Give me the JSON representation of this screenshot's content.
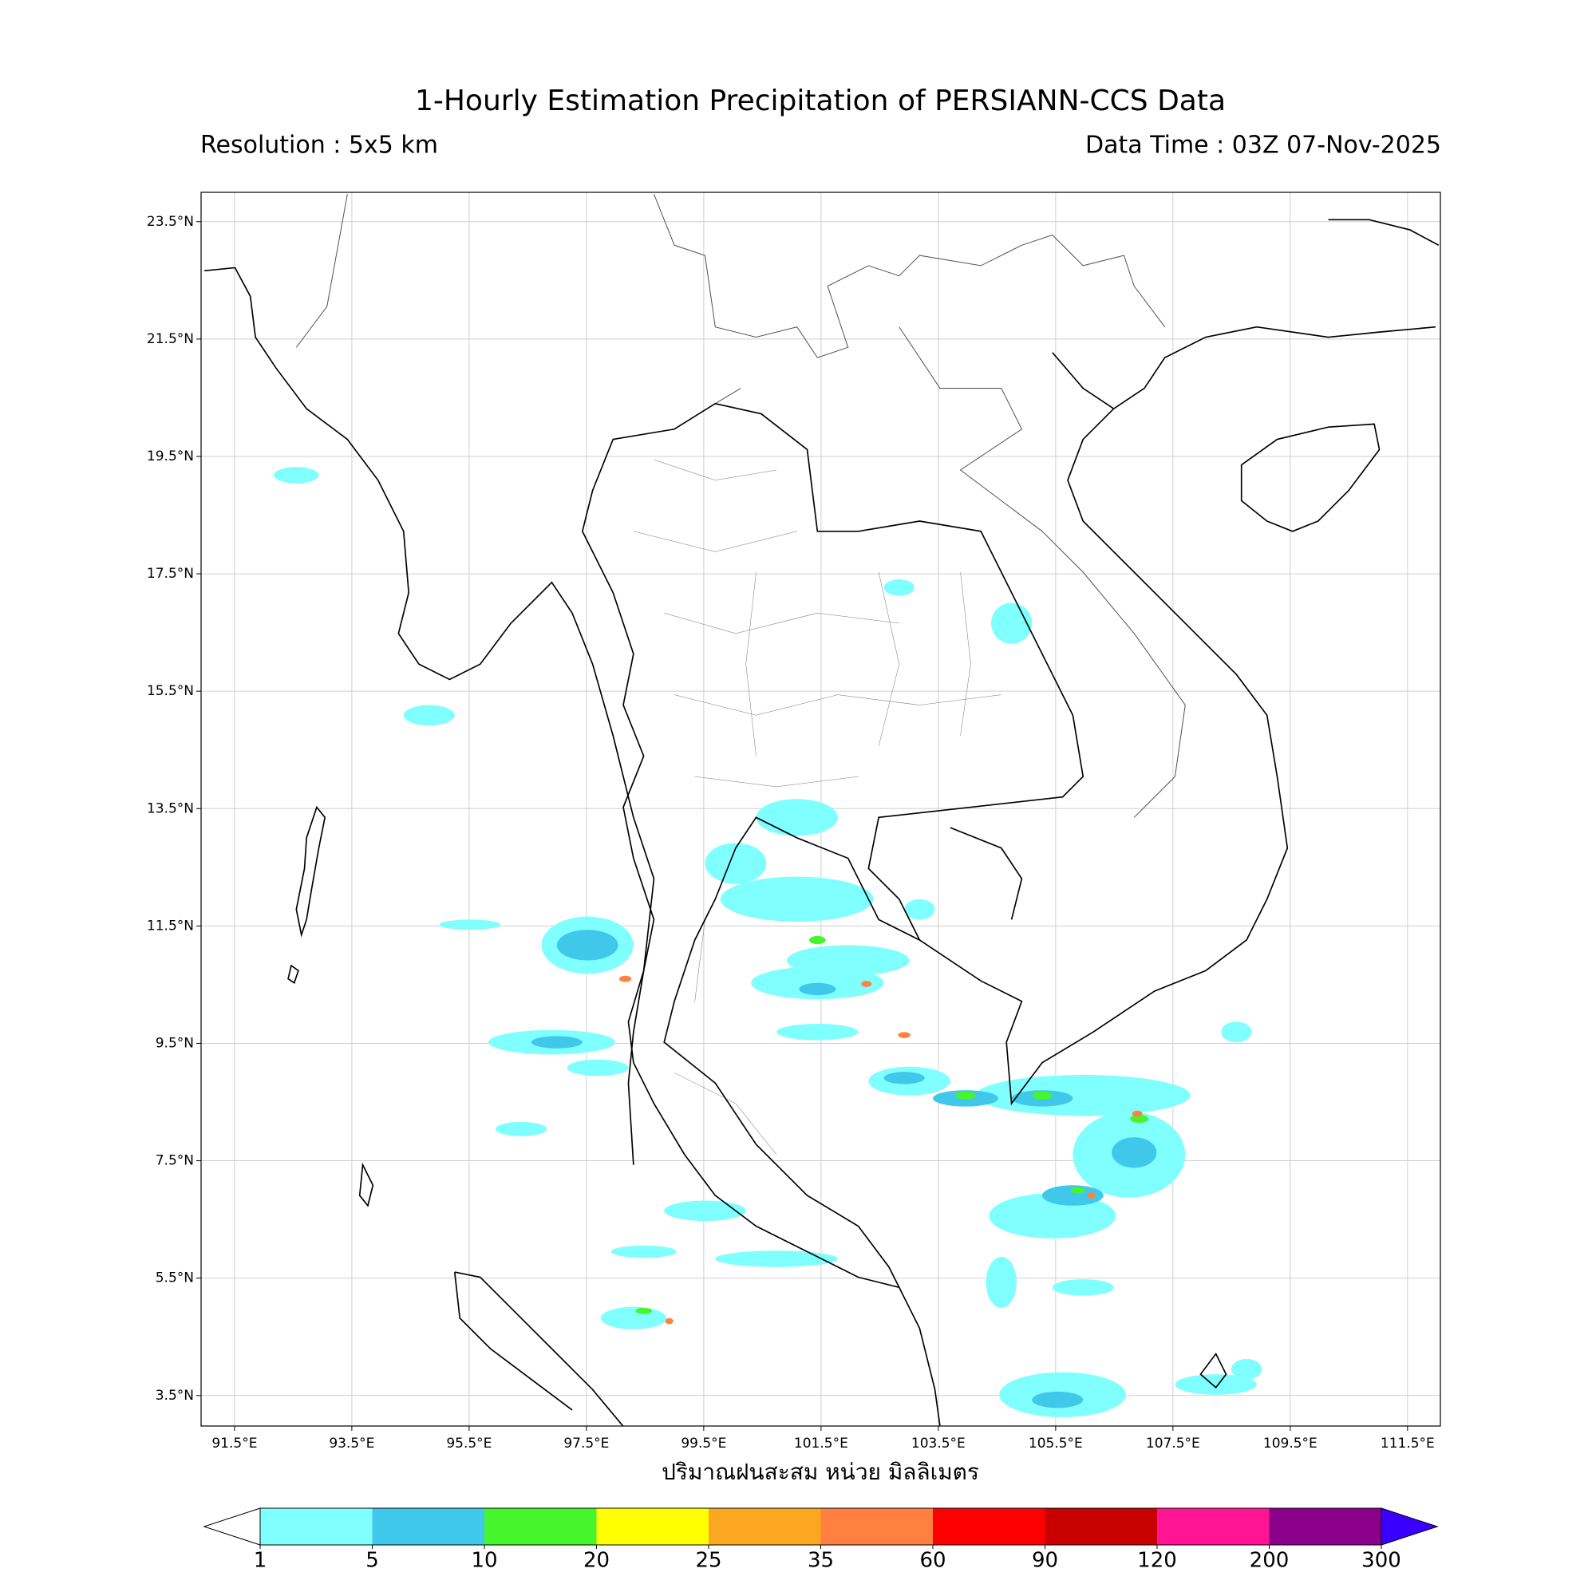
{
  "header": {
    "title": "1-Hourly Estimation Precipitation of PERSIANN-CCS Data",
    "resolution": "Resolution : 5x5 km",
    "data_time": "Data Time : 03Z 07-Nov-2025"
  },
  "map": {
    "lonlim": [
      90.93,
      112.06
    ],
    "latlim": [
      2.98,
      24.0
    ],
    "grid": true,
    "lon_ticks": [
      {
        "value": 91.5,
        "label": "91.5°E"
      },
      {
        "value": 93.5,
        "label": "93.5°E"
      },
      {
        "value": 95.5,
        "label": "95.5°E"
      },
      {
        "value": 97.5,
        "label": "97.5°E"
      },
      {
        "value": 99.5,
        "label": "99.5°E"
      },
      {
        "value": 101.5,
        "label": "101.5°E"
      },
      {
        "value": 103.5,
        "label": "103.5°E"
      },
      {
        "value": 105.5,
        "label": "105.5°E"
      },
      {
        "value": 107.5,
        "label": "107.5°E"
      },
      {
        "value": 109.5,
        "label": "109.5°E"
      },
      {
        "value": 111.5,
        "label": "111.5°E"
      }
    ],
    "lat_ticks": [
      {
        "value": 3.5,
        "label": "3.5°N"
      },
      {
        "value": 5.5,
        "label": "5.5°N"
      },
      {
        "value": 7.5,
        "label": "7.5°N"
      },
      {
        "value": 9.5,
        "label": "9.5°N"
      },
      {
        "value": 11.5,
        "label": "11.5°N"
      },
      {
        "value": 13.5,
        "label": "13.5°N"
      },
      {
        "value": 15.5,
        "label": "15.5°N"
      },
      {
        "value": 17.5,
        "label": "17.5°N"
      },
      {
        "value": 19.5,
        "label": "19.5°N"
      },
      {
        "value": 21.5,
        "label": "21.5°N"
      },
      {
        "value": 23.5,
        "label": "23.5°N"
      }
    ],
    "x_label": "ปริมาณฝนสะสม หน่วย มิลลิเมตร"
  },
  "colorbar": {
    "levels": [
      1,
      5,
      10,
      20,
      25,
      35,
      60,
      90,
      120,
      200,
      300
    ],
    "colors": [
      "#80ffff",
      "#40c8ea",
      "#46f52c",
      "#ffff00",
      "#fba720",
      "#ff8040",
      "#ff0000",
      "#c80000",
      "#ff1493",
      "#8b008b"
    ],
    "under_color": "#ffffff",
    "over_color": "#3a00ff"
  }
}
